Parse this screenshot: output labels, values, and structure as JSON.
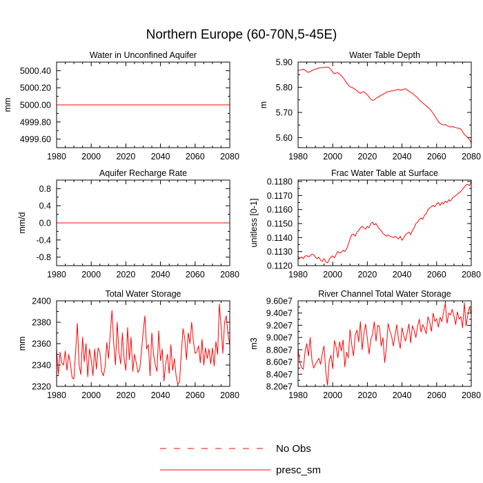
{
  "figure": {
    "title": "Northern Europe (60-70N,5-45E)"
  },
  "legend": {
    "items": [
      {
        "label": "No Obs",
        "style": "dashed",
        "color": "#ff0000"
      },
      {
        "label": "presc_sm",
        "style": "solid",
        "color": "#ff0000"
      }
    ]
  },
  "colors": {
    "series": "#ff0000",
    "axis": "#000000"
  },
  "chart_data": [
    {
      "type": "line",
      "title": "Water in Unconfined Aquifer",
      "xlabel": "",
      "ylabel": "mm",
      "xlim": [
        1980,
        2080
      ],
      "ylim": [
        4999.5,
        5000.5
      ],
      "xticks": [
        1980,
        2000,
        2020,
        2040,
        2060,
        2080
      ],
      "xtick_labels": [
        "1980",
        "2000",
        "2020",
        "2040",
        "2060",
        "2080"
      ],
      "yticks": [
        4999.6,
        4999.8,
        5000.0,
        5000.2,
        5000.4
      ],
      "ytick_labels": [
        "4999.60",
        "4999.80",
        "5000.00",
        "5000.20",
        "5000.40"
      ],
      "series": [
        {
          "name": "presc_sm",
          "x": [
            1980,
            2080
          ],
          "values": [
            5000.0,
            5000.0
          ]
        }
      ]
    },
    {
      "type": "line",
      "title": "Water Table Depth",
      "xlabel": "",
      "ylabel": "m",
      "xlim": [
        1980,
        2080
      ],
      "ylim": [
        5.56,
        5.9
      ],
      "xticks": [
        1980,
        2000,
        2020,
        2040,
        2060,
        2080
      ],
      "xtick_labels": [
        "1980",
        "2000",
        "2020",
        "2040",
        "2060",
        "2080"
      ],
      "yticks": [
        5.6,
        5.7,
        5.8,
        5.9
      ],
      "ytick_labels": [
        "5.60",
        "5.70",
        "5.80",
        "5.90"
      ],
      "series": [
        {
          "name": "presc_sm",
          "x_start": 1980,
          "x_step": 1,
          "values": [
            5.866,
            5.868,
            5.87,
            5.872,
            5.868,
            5.862,
            5.86,
            5.862,
            5.866,
            5.87,
            5.872,
            5.874,
            5.876,
            5.878,
            5.878,
            5.878,
            5.88,
            5.88,
            5.878,
            5.87,
            5.86,
            5.854,
            5.856,
            5.858,
            5.852,
            5.846,
            5.838,
            5.828,
            5.818,
            5.808,
            5.802,
            5.8,
            5.796,
            5.792,
            5.786,
            5.78,
            5.776,
            5.78,
            5.782,
            5.776,
            5.77,
            5.762,
            5.752,
            5.748,
            5.75,
            5.756,
            5.76,
            5.764,
            5.768,
            5.772,
            5.776,
            5.78,
            5.782,
            5.784,
            5.786,
            5.786,
            5.788,
            5.79,
            5.792,
            5.788,
            5.79,
            5.792,
            5.794,
            5.79,
            5.784,
            5.78,
            5.776,
            5.77,
            5.764,
            5.758,
            5.75,
            5.744,
            5.738,
            5.732,
            5.726,
            5.72,
            5.714,
            5.706,
            5.696,
            5.686,
            5.674,
            5.664,
            5.656,
            5.652,
            5.65,
            5.652,
            5.648,
            5.644,
            5.642,
            5.644,
            5.642,
            5.64,
            5.638,
            5.636,
            5.634,
            5.624,
            5.612,
            5.606,
            5.6,
            5.592,
            5.578
          ]
        }
      ]
    },
    {
      "type": "line",
      "title": "Aquifer Recharge Rate",
      "xlabel": "",
      "ylabel": "mm/d",
      "xlim": [
        1980,
        2080
      ],
      "ylim": [
        -1.0,
        1.0
      ],
      "xticks": [
        1980,
        2000,
        2020,
        2040,
        2060,
        2080
      ],
      "xtick_labels": [
        "1980",
        "2000",
        "2020",
        "2040",
        "2060",
        "2080"
      ],
      "yticks": [
        -0.8,
        -0.4,
        0.0,
        0.4,
        0.8
      ],
      "ytick_labels": [
        "-0.8",
        "-0.4",
        "0.0",
        "0.4",
        "0.8"
      ],
      "series": [
        {
          "name": "presc_sm",
          "x": [
            1980,
            2080
          ],
          "values": [
            0.0,
            0.0
          ]
        }
      ]
    },
    {
      "type": "line",
      "title": "Frac Water Table at Surface",
      "xlabel": "",
      "ylabel": "unitless [0-1]",
      "xlim": [
        1980,
        2080
      ],
      "ylim": [
        0.112,
        0.1181
      ],
      "xticks": [
        1980,
        2000,
        2020,
        2040,
        2060,
        2080
      ],
      "xtick_labels": [
        "1980",
        "2000",
        "2020",
        "2040",
        "2060",
        "2080"
      ],
      "yticks": [
        0.112,
        0.113,
        0.114,
        0.115,
        0.116,
        0.117,
        0.118
      ],
      "ytick_labels": [
        "0.1120",
        "0.1130",
        "0.1140",
        "0.1150",
        "0.1160",
        "0.1170",
        "0.1180"
      ],
      "series": [
        {
          "name": "presc_sm",
          "x_start": 1980,
          "x_step": 1,
          "values": [
            0.11265,
            0.11255,
            0.11262,
            0.1125,
            0.11268,
            0.11272,
            0.11262,
            0.1127,
            0.11282,
            0.11278,
            0.11262,
            0.1125,
            0.1126,
            0.1124,
            0.1123,
            0.1125,
            0.11225,
            0.1122,
            0.11245,
            0.11262,
            0.1127,
            0.11255,
            0.1128,
            0.113,
            0.1129,
            0.11295,
            0.1131,
            0.113,
            0.1132,
            0.1135,
            0.1139,
            0.1142,
            0.11425,
            0.1141,
            0.1144,
            0.1145,
            0.1147,
            0.1148,
            0.1147,
            0.1146,
            0.1148,
            0.1147,
            0.115,
            0.1151,
            0.1149,
            0.115,
            0.1148,
            0.1146,
            0.1145,
            0.1143,
            0.1142,
            0.1141,
            0.1142,
            0.1141,
            0.11405,
            0.114,
            0.1141,
            0.114,
            0.1139,
            0.1141,
            0.1138,
            0.114,
            0.1142,
            0.1143,
            0.1144,
            0.1142,
            0.1145,
            0.1147,
            0.115,
            0.1151,
            0.1153,
            0.1154,
            0.1153,
            0.1156,
            0.1157,
            0.116,
            0.1161,
            0.1162,
            0.1163,
            0.1162,
            0.1164,
            0.1165,
            0.1163,
            0.1165,
            0.1164,
            0.1166,
            0.1165,
            0.1167,
            0.1166,
            0.1168,
            0.1169,
            0.117,
            0.1171,
            0.1172,
            0.1173,
            0.11745,
            0.1176,
            0.11775,
            0.1178,
            0.1177,
            0.118
          ]
        }
      ]
    },
    {
      "type": "line",
      "title": "Total Water Storage",
      "xlabel": "",
      "ylabel": "mm",
      "xlim": [
        1980,
        2080
      ],
      "ylim": [
        2320,
        2400
      ],
      "xticks": [
        1980,
        2000,
        2020,
        2040,
        2060,
        2080
      ],
      "xtick_labels": [
        "1980",
        "2000",
        "2020",
        "2040",
        "2060",
        "2080"
      ],
      "yticks": [
        2320,
        2340,
        2360,
        2380,
        2400
      ],
      "ytick_labels": [
        "2320",
        "2340",
        "2360",
        "2380",
        "2400"
      ],
      "series": [
        {
          "name": "presc_sm",
          "x_start": 1980,
          "x_step": 1,
          "values": [
            2355,
            2331,
            2352,
            2342,
            2340,
            2353,
            2335,
            2350,
            2341,
            2328,
            2327,
            2352,
            2379,
            2340,
            2331,
            2366,
            2343,
            2360,
            2329,
            2355,
            2345,
            2330,
            2355,
            2336,
            2356,
            2352,
            2334,
            2330,
            2338,
            2361,
            2346,
            2370,
            2391,
            2360,
            2340,
            2380,
            2352,
            2341,
            2370,
            2346,
            2335,
            2375,
            2345,
            2366,
            2334,
            2350,
            2342,
            2333,
            2336,
            2352,
            2371,
            2386,
            2355,
            2359,
            2330,
            2370,
            2350,
            2340,
            2334,
            2372,
            2344,
            2355,
            2325,
            2341,
            2350,
            2332,
            2359,
            2335,
            2346,
            2330,
            2322,
            2324,
            2350,
            2374,
            2365,
            2345,
            2370,
            2360,
            2380,
            2362,
            2351,
            2352,
            2358,
            2342,
            2364,
            2340,
            2356,
            2346,
            2355,
            2341,
            2356,
            2339,
            2362,
            2350,
            2397,
            2376,
            2351,
            2380,
            2386,
            2368,
            2359
          ]
        }
      ]
    },
    {
      "type": "line",
      "title": "River Channel Total Water Storage",
      "xlabel": "",
      "ylabel": "m3",
      "xlim": [
        1980,
        2080
      ],
      "ylim": [
        82000000,
        96000000
      ],
      "xticks": [
        1980,
        2000,
        2020,
        2040,
        2060,
        2080
      ],
      "xtick_labels": [
        "1980",
        "2000",
        "2020",
        "2040",
        "2060",
        "2080"
      ],
      "yticks": [
        82000000,
        84000000,
        86000000,
        88000000,
        90000000,
        92000000,
        94000000,
        96000000
      ],
      "ytick_labels": [
        "8.20e7",
        "8.40e7",
        "8.60e7",
        "8.80e7",
        "9.00e7",
        "9.20e7",
        "9.40e7",
        "9.60e7"
      ],
      "series": [
        {
          "name": "presc_sm",
          "x_start": 1980,
          "x_step": 1,
          "values": [
            88200000,
            85900000,
            85100000,
            84800000,
            87600000,
            89000000,
            87000000,
            90000000,
            86300000,
            85000000,
            85600000,
            86100000,
            86600000,
            85600000,
            87400000,
            88600000,
            84400000,
            82200000,
            86200000,
            87100000,
            84900000,
            89500000,
            88400000,
            86700000,
            89300000,
            87800000,
            89600000,
            85200000,
            87600000,
            86700000,
            91300000,
            88800000,
            87000000,
            90400000,
            91200000,
            89300000,
            92600000,
            88000000,
            90600000,
            92200000,
            89800000,
            87300000,
            89700000,
            90500000,
            92600000,
            89400000,
            92000000,
            91800000,
            88600000,
            90000000,
            85900000,
            88400000,
            92300000,
            91100000,
            90200000,
            88600000,
            90400000,
            92100000,
            89700000,
            88200000,
            91600000,
            90300000,
            89400000,
            90800000,
            92200000,
            89100000,
            91900000,
            91200000,
            90000000,
            91800000,
            93000000,
            90900000,
            92100000,
            91500000,
            90600000,
            93400000,
            92500000,
            91000000,
            94000000,
            92600000,
            93100000,
            91700000,
            93300000,
            92600000,
            94100000,
            95600000,
            92300000,
            94000000,
            93700000,
            94600000,
            93500000,
            92100000,
            94200000,
            93000000,
            93400000,
            91600000,
            95700000,
            91900000,
            93700000,
            95000000,
            93800000
          ]
        }
      ]
    }
  ]
}
